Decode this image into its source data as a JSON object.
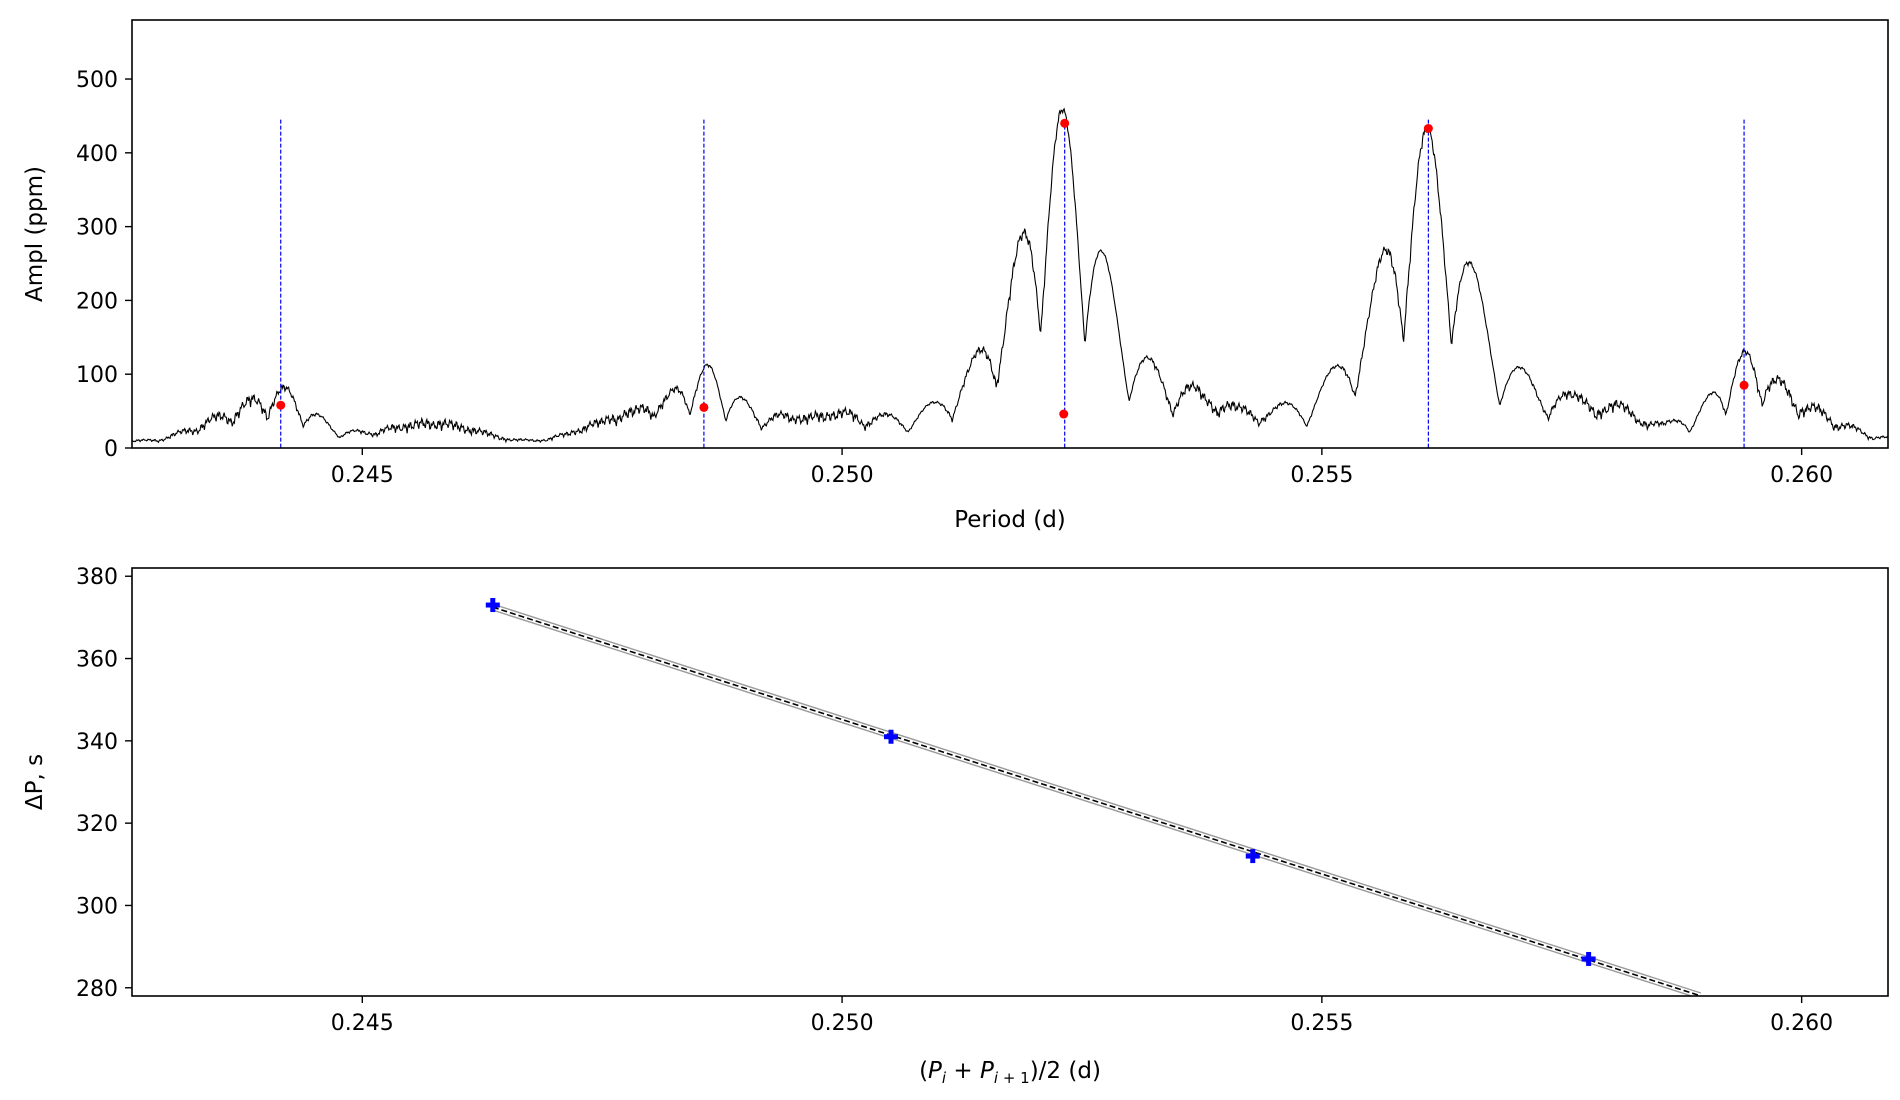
{
  "chart_data": [
    {
      "type": "line",
      "xlabel": "Period (d)",
      "ylabel": "Ampl (ppm)",
      "xlim": [
        0.2426,
        0.2609
      ],
      "ylim": [
        0,
        580
      ],
      "xticks": [
        0.245,
        0.25,
        0.255,
        0.26
      ],
      "xtick_labels": [
        "0.245",
        "0.250",
        "0.255",
        "0.260"
      ],
      "yticks": [
        0,
        100,
        200,
        300,
        400,
        500
      ],
      "ytick_labels": [
        "0",
        "100",
        "200",
        "300",
        "400",
        "500"
      ],
      "grid": false,
      "colors": {
        "spectrum": "#000000",
        "markers": "#ff0000",
        "reference_lines": "#0000ff"
      },
      "spectrum_peaks": [
        {
          "period": 0.2523,
          "amplitude": 440,
          "width": 0.00022
        },
        {
          "period": 0.2561,
          "amplitude": 405,
          "width": 0.00024
        },
        {
          "period": 0.2486,
          "amplitude": 105,
          "width": 0.00018
        },
        {
          "period": 0.2594,
          "amplitude": 115,
          "width": 0.00018
        },
        {
          "period": 0.2442,
          "amplitude": 62,
          "width": 0.00018
        }
      ],
      "reference_lines": [
        0.24415,
        0.24856,
        0.25232,
        0.25611,
        0.2594
      ],
      "marked_points": [
        {
          "x": 0.24415,
          "y": 58
        },
        {
          "x": 0.24856,
          "y": 55
        },
        {
          "x": 0.25232,
          "y": 440
        },
        {
          "x": 0.25231,
          "y": 46
        },
        {
          "x": 0.25611,
          "y": 433
        },
        {
          "x": 0.2594,
          "y": 85
        }
      ]
    },
    {
      "type": "scatter",
      "xlabel": "(P_i + P_{i+1})/2 (d)",
      "ylabel": "ΔP, s",
      "xlim": [
        0.2426,
        0.2609
      ],
      "ylim": [
        278,
        382
      ],
      "xticks": [
        0.245,
        0.25,
        0.255,
        0.26
      ],
      "xtick_labels": [
        "0.245",
        "0.250",
        "0.255",
        "0.260"
      ],
      "yticks": [
        280,
        300,
        320,
        340,
        360,
        380
      ],
      "ytick_labels": [
        "280",
        "300",
        "320",
        "340",
        "360",
        "380"
      ],
      "grid": false,
      "colors": {
        "points": "#0000ff",
        "fit": "#000000",
        "fit_band": "#9a9a9a"
      },
      "points": [
        {
          "x": 0.24636,
          "y": 373.0
        },
        {
          "x": 0.25051,
          "y": 341.0
        },
        {
          "x": 0.25428,
          "y": 312.0
        },
        {
          "x": 0.25778,
          "y": 287.0
        }
      ],
      "fit_line": {
        "x": [
          0.24636,
          0.25895
        ],
        "y": [
          372.5,
          278.0
        ]
      }
    }
  ]
}
